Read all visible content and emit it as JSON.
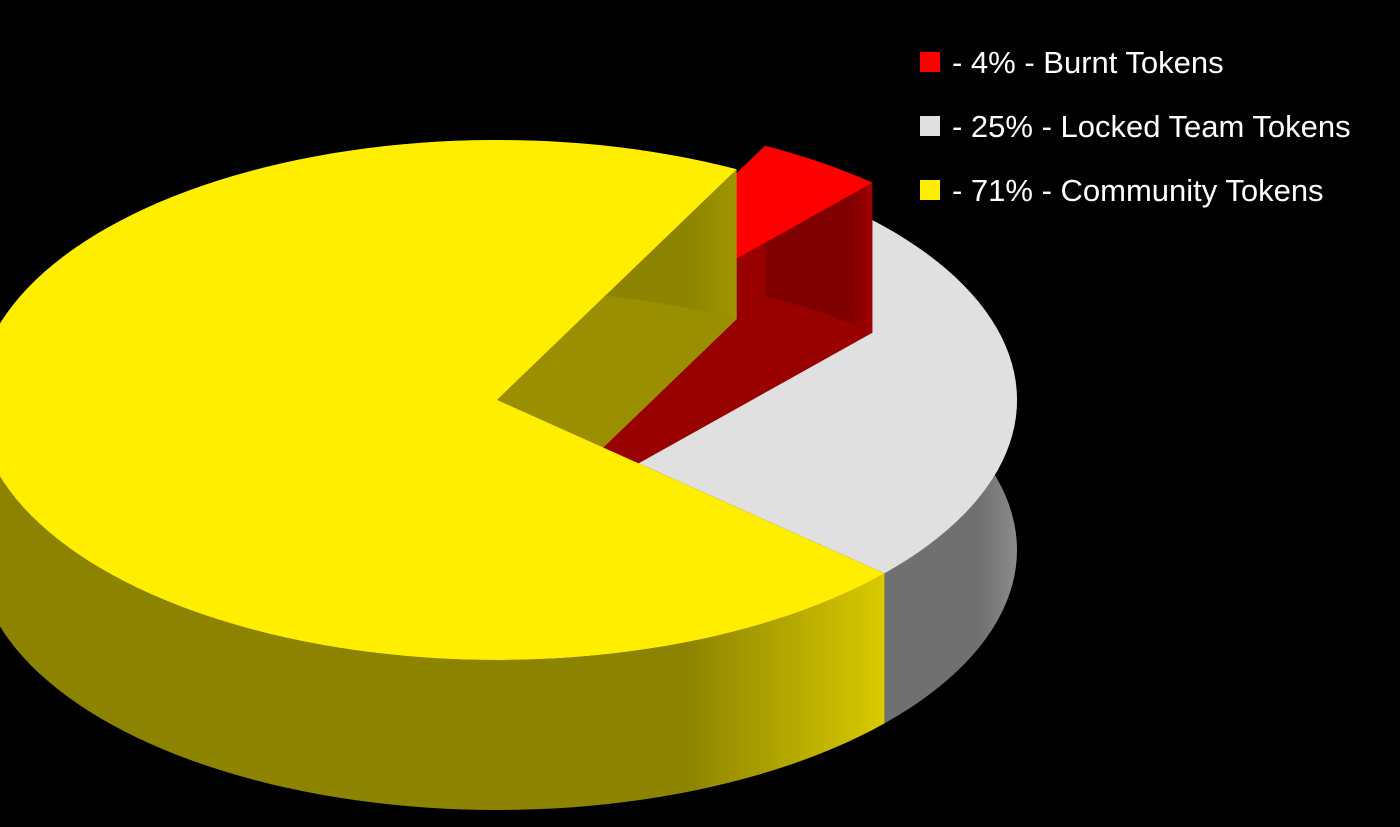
{
  "chart_data": {
    "type": "pie",
    "title": "",
    "legend_position": "top-right",
    "slices": [
      {
        "key": "burnt",
        "label": "- 4% - Burnt Tokens",
        "value": 4,
        "color": "#ff0000"
      },
      {
        "key": "locked",
        "label": "- 25% - Locked Team Tokens",
        "value": 25,
        "color": "#e0e0e0"
      },
      {
        "key": "community",
        "label": "- 71% - Community Tokens",
        "value": 71,
        "color": "#ffee00"
      }
    ]
  }
}
